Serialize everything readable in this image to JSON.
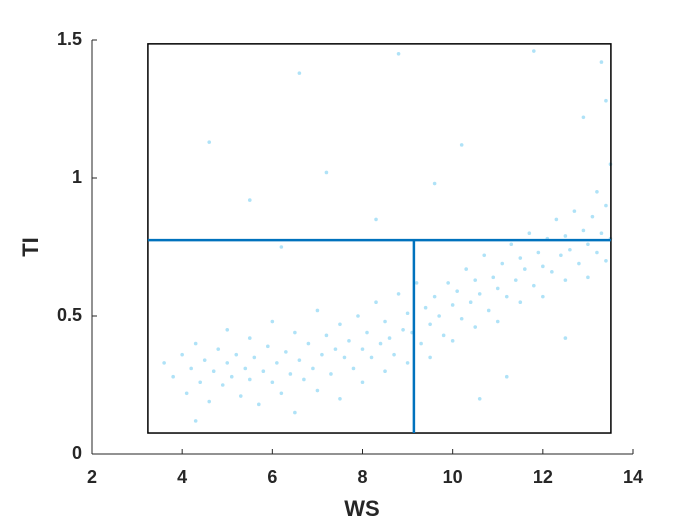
{
  "chart_data": {
    "type": "scatter",
    "xlabel": "WS",
    "ylabel": "TI",
    "xlim": [
      2,
      14
    ],
    "xticks": [
      2,
      4,
      6,
      8,
      10,
      12,
      14
    ],
    "ylim": [
      0,
      1.5
    ],
    "yticks": [
      0,
      0.5,
      1,
      1.5
    ],
    "color": "#4dbfee",
    "x": [
      3.6,
      3.8,
      4.0,
      4.1,
      4.2,
      4.3,
      4.4,
      4.5,
      4.6,
      4.7,
      4.8,
      4.9,
      5.0,
      5.0,
      5.1,
      5.2,
      5.3,
      5.4,
      5.5,
      5.5,
      5.6,
      5.7,
      5.8,
      5.9,
      6.0,
      6.0,
      6.1,
      6.2,
      6.3,
      6.4,
      6.5,
      6.5,
      6.6,
      6.7,
      6.8,
      6.9,
      7.0,
      7.0,
      7.1,
      7.2,
      7.3,
      7.4,
      7.5,
      7.5,
      7.6,
      7.7,
      7.8,
      7.9,
      8.0,
      8.0,
      8.1,
      8.2,
      8.3,
      8.4,
      8.5,
      8.5,
      8.6,
      8.7,
      8.8,
      8.9,
      9.0,
      9.0,
      9.1,
      9.2,
      9.3,
      9.4,
      9.5,
      9.5,
      9.6,
      9.7,
      9.8,
      9.9,
      10.0,
      10.0,
      10.1,
      10.2,
      10.3,
      10.4,
      10.5,
      10.5,
      10.6,
      10.7,
      10.8,
      10.9,
      11.0,
      11.0,
      11.1,
      11.2,
      11.3,
      11.4,
      11.5,
      11.5,
      11.6,
      11.7,
      11.8,
      11.9,
      12.0,
      12.0,
      12.1,
      12.2,
      12.3,
      12.4,
      12.5,
      12.5,
      12.6,
      12.7,
      12.8,
      12.9,
      13.0,
      13.0,
      13.1,
      13.2,
      13.2,
      13.3,
      13.4,
      13.4,
      13.5,
      13.5,
      4.6,
      6.6,
      8.8,
      11.8,
      13.3,
      10.2,
      5.5,
      7.2,
      9.6,
      12.9,
      13.4,
      8.3,
      6.2,
      11.2,
      12.5,
      4.3,
      10.6
    ],
    "y": [
      0.33,
      0.28,
      0.36,
      0.22,
      0.31,
      0.4,
      0.26,
      0.34,
      0.19,
      0.3,
      0.38,
      0.25,
      0.33,
      0.45,
      0.28,
      0.36,
      0.21,
      0.31,
      0.42,
      0.27,
      0.35,
      0.18,
      0.3,
      0.39,
      0.26,
      0.48,
      0.33,
      0.22,
      0.37,
      0.29,
      0.44,
      0.15,
      0.34,
      0.27,
      0.4,
      0.31,
      0.52,
      0.23,
      0.36,
      0.43,
      0.29,
      0.38,
      0.47,
      0.2,
      0.35,
      0.41,
      0.31,
      0.5,
      0.38,
      0.26,
      0.44,
      0.35,
      0.55,
      0.4,
      0.3,
      0.48,
      0.42,
      0.36,
      0.58,
      0.45,
      0.33,
      0.51,
      0.44,
      0.62,
      0.4,
      0.53,
      0.47,
      0.35,
      0.57,
      0.5,
      0.43,
      0.62,
      0.54,
      0.41,
      0.59,
      0.49,
      0.67,
      0.55,
      0.46,
      0.63,
      0.58,
      0.72,
      0.52,
      0.64,
      0.6,
      0.48,
      0.69,
      0.57,
      0.76,
      0.63,
      0.55,
      0.71,
      0.67,
      0.8,
      0.61,
      0.73,
      0.68,
      0.57,
      0.78,
      0.66,
      0.85,
      0.72,
      0.63,
      0.79,
      0.74,
      0.88,
      0.69,
      0.81,
      0.76,
      0.64,
      0.86,
      0.73,
      0.95,
      0.8,
      0.7,
      0.9,
      0.78,
      1.05,
      1.13,
      1.38,
      1.45,
      1.46,
      1.42,
      1.12,
      0.92,
      1.02,
      0.98,
      1.22,
      1.28,
      0.85,
      0.75,
      0.28,
      0.42,
      0.12,
      0.2
    ],
    "box": {
      "x": [
        3.24,
        13.51
      ],
      "y": [
        0.076,
        1.486
      ],
      "color": "#000000"
    },
    "hline": {
      "y": 0.775,
      "x": [
        3.24,
        13.51
      ],
      "color": "#0072bd"
    },
    "vline": {
      "x": 9.14,
      "y": [
        0.076,
        0.775
      ],
      "color": "#0072bd"
    }
  }
}
